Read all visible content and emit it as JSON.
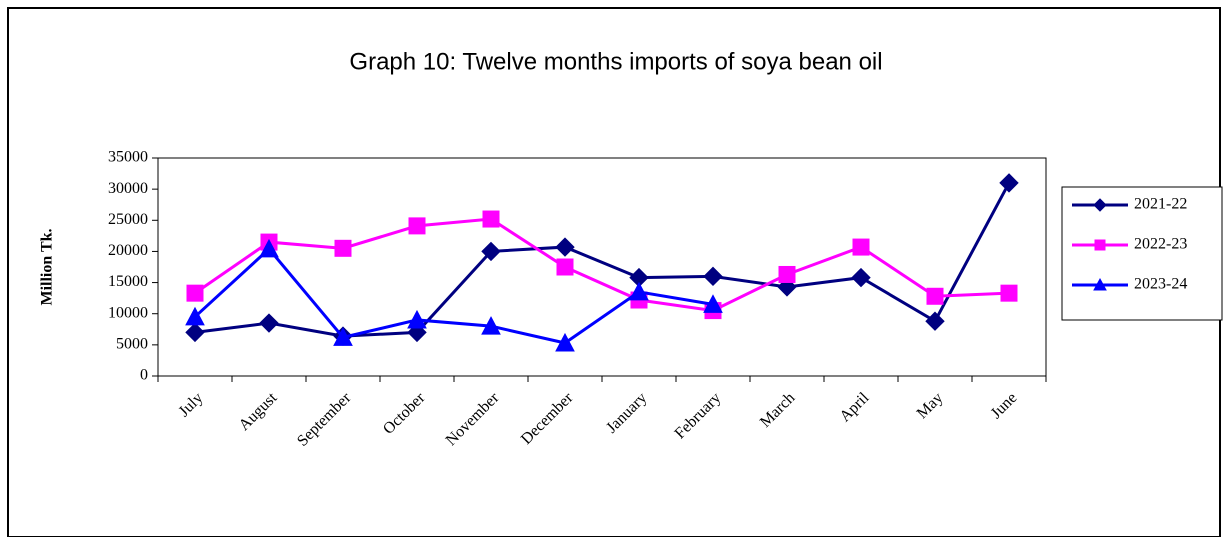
{
  "chart_data": {
    "type": "line",
    "title": "Graph 10: Twelve months imports of soya bean oil",
    "y_label": "Million Tk.",
    "categories": [
      "July",
      "August",
      "September",
      "October",
      "November",
      "December",
      "January",
      "February",
      "March",
      "April",
      "May",
      "June"
    ],
    "series": [
      {
        "name": "2021-22",
        "color": "#000080",
        "marker": "diamond",
        "values": [
          7000,
          8500,
          6400,
          7000,
          20000,
          20700,
          15800,
          16000,
          14300,
          15800,
          8800,
          31000
        ]
      },
      {
        "name": "2022-23",
        "color": "#ff00ff",
        "marker": "square",
        "values": [
          13300,
          21500,
          20500,
          24100,
          25200,
          17500,
          12200,
          10500,
          16300,
          20700,
          12800,
          13300
        ]
      },
      {
        "name": "2023-24",
        "color": "#0000ff",
        "marker": "triangle",
        "values": [
          9500,
          20400,
          6200,
          9000,
          8000,
          5300,
          13500,
          11500,
          null,
          null,
          null,
          null
        ]
      }
    ],
    "ylim": [
      0,
      35000
    ],
    "yticks": [
      0,
      5000,
      10000,
      15000,
      20000,
      25000,
      30000,
      35000
    ],
    "legend": "right"
  }
}
